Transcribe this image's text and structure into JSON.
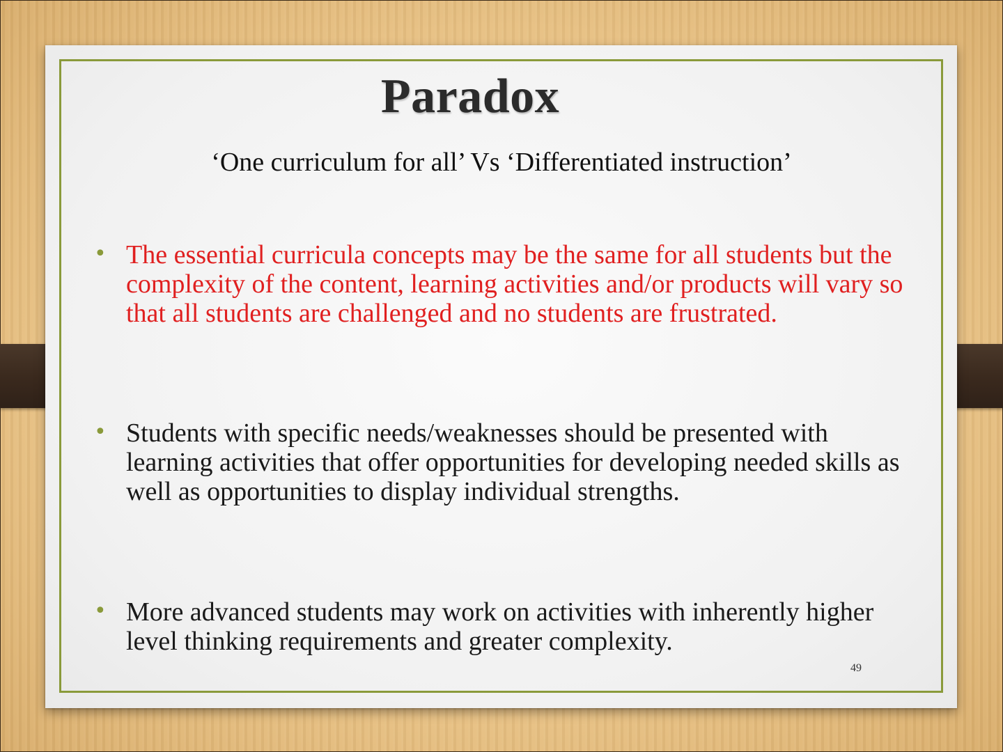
{
  "slide": {
    "title": "Paradox",
    "subtitle": "‘One curriculum for all’ Vs ‘Differentiated instruction’",
    "bullets": [
      {
        "text": "The essential curricula concepts may be the same for all students but the complexity of the content, learning activities and/or products will vary so that all students are challenged and no students are frustrated.",
        "color": "#e02020"
      },
      {
        "text": "Students with specific needs/weaknesses should be presented with learning activities that offer opportunities for developing needed skills as well as opportunities to display individual strengths.",
        "color": "#1a1a1a"
      },
      {
        "text": "More advanced students may work on activities with inherently higher level thinking requirements and greater complexity.",
        "color": "#1a1a1a"
      }
    ],
    "bullet_symbol": "•",
    "page_number": "49"
  },
  "theme": {
    "border_color": "#8a9a3a",
    "background": "wood",
    "accent_strap_color": "#3b2a1e"
  }
}
